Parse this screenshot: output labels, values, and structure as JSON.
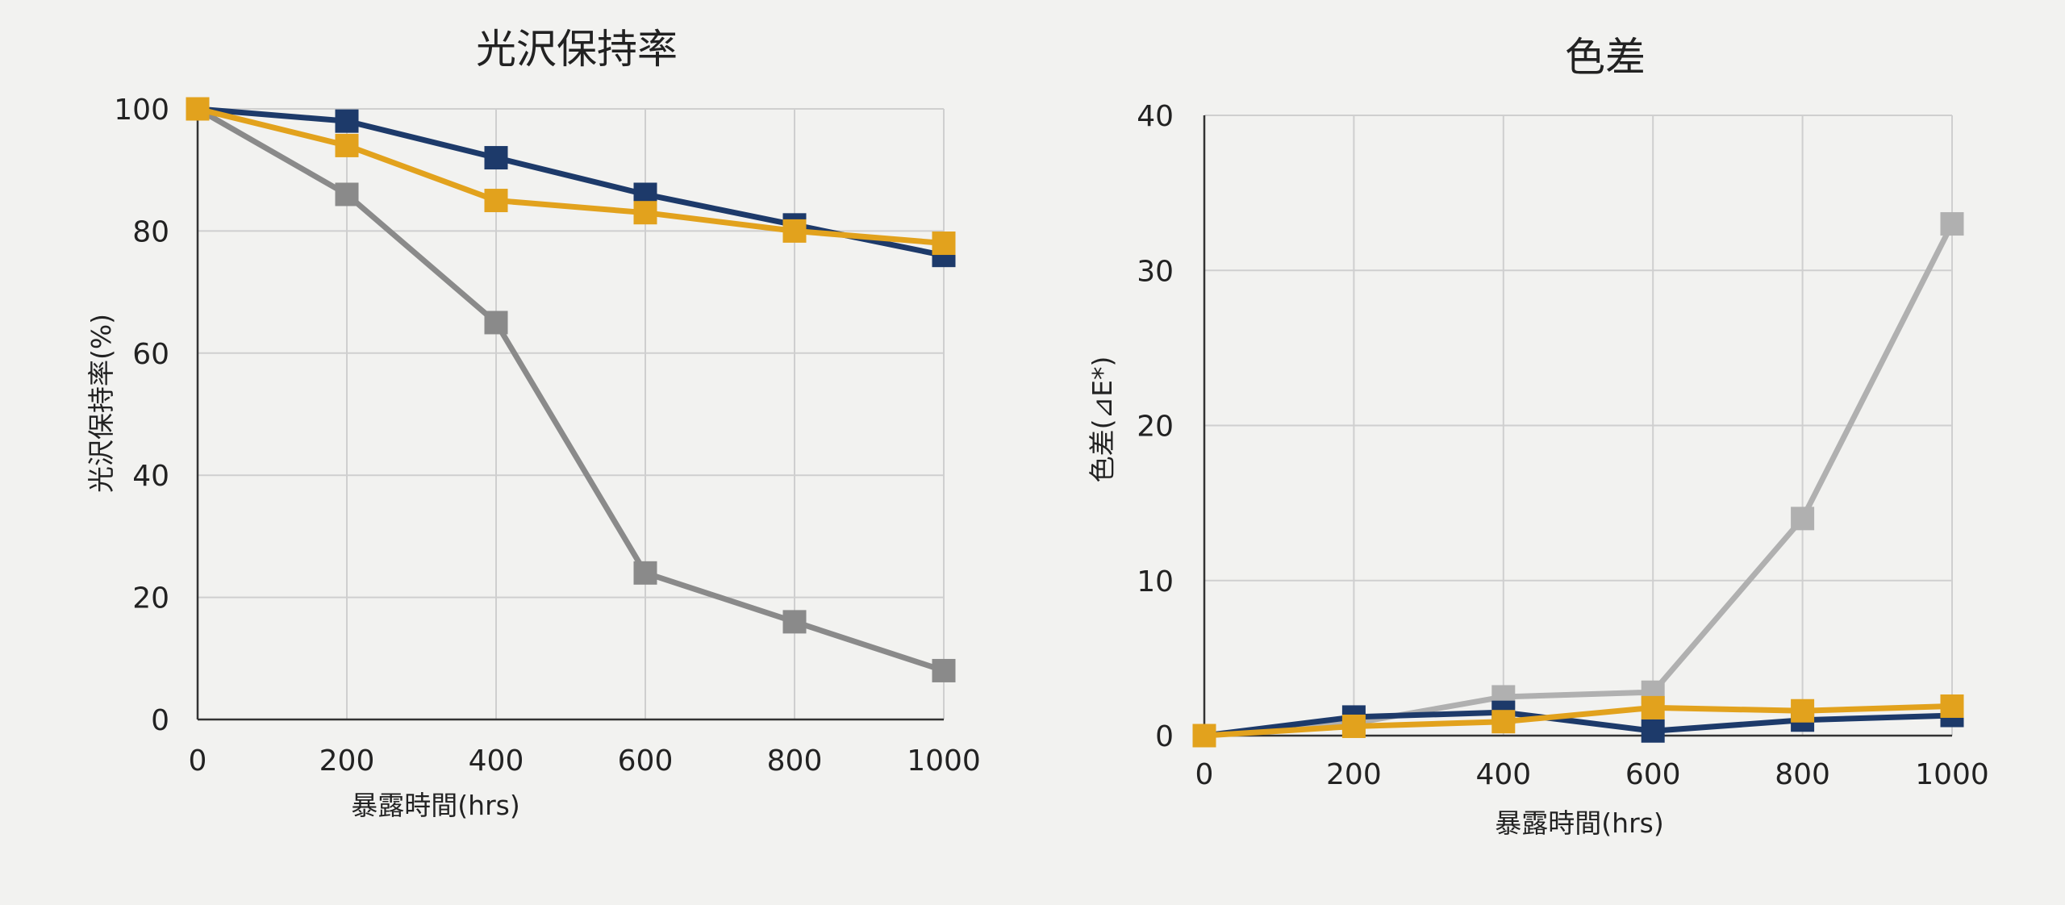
{
  "chart_data": [
    {
      "type": "line",
      "title": "光沢保持率",
      "xlabel": "暴露時間(hrs)",
      "ylabel": "光沢保持率(%)",
      "x": [
        0,
        200,
        400,
        600,
        800,
        1000
      ],
      "xlim": [
        0,
        1000
      ],
      "ylim": [
        0,
        100
      ],
      "xticks": [
        "0",
        "200",
        "400",
        "600",
        "800",
        "1000"
      ],
      "yticks": [
        "0",
        "20",
        "40",
        "60",
        "80",
        "100"
      ],
      "grid": true,
      "series": [
        {
          "color": "#8a8a8a",
          "values": [
            100,
            86,
            65,
            24,
            16,
            8
          ]
        },
        {
          "color": "#1d3a6a",
          "values": [
            100,
            98,
            92,
            86,
            81,
            76
          ]
        },
        {
          "color": "#e2a21d",
          "values": [
            100,
            94,
            85,
            83,
            80,
            78
          ]
        }
      ]
    },
    {
      "type": "line",
      "title": "色差",
      "xlabel": "暴露時間(hrs)",
      "ylabel": "色差(⊿E*)",
      "x": [
        0,
        200,
        400,
        600,
        800,
        1000
      ],
      "xlim": [
        0,
        1000
      ],
      "ylim": [
        0,
        40
      ],
      "xticks": [
        "0",
        "200",
        "400",
        "600",
        "800",
        "1000"
      ],
      "yticks": [
        "0",
        "10",
        "20",
        "30",
        "40"
      ],
      "grid": true,
      "series": [
        {
          "color": "#b0b0b0",
          "values": [
            0,
            0.8,
            2.5,
            2.8,
            14,
            33
          ]
        },
        {
          "color": "#1d3a6a",
          "values": [
            0,
            1.2,
            1.5,
            0.3,
            1.0,
            1.3
          ]
        },
        {
          "color": "#e2a21d",
          "values": [
            0,
            0.6,
            0.9,
            1.8,
            1.6,
            1.9
          ]
        }
      ]
    }
  ]
}
